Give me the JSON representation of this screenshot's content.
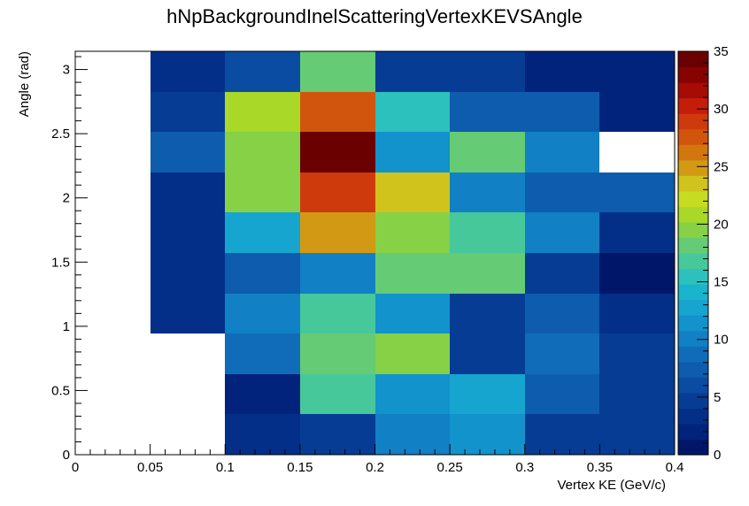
{
  "chart_data": {
    "type": "heatmap",
    "title": "hNpBackgroundInelScatteringVertexKEVSAngle",
    "xlabel": "Vertex KE (GeV/c)",
    "ylabel": "Angle (rad)",
    "xlim": [
      0,
      0.4
    ],
    "ylim": [
      0,
      3.14159
    ],
    "x_edges": [
      0,
      0.05,
      0.1,
      0.15,
      0.2,
      0.25,
      0.3,
      0.35,
      0.4
    ],
    "y_edges": [
      0,
      0.31416,
      0.62832,
      0.94248,
      1.25664,
      1.5708,
      1.88496,
      2.19911,
      2.51327,
      2.82743,
      3.14159
    ],
    "x_tick_labels": [
      "0",
      "0.05",
      "0.1",
      "0.15",
      "0.2",
      "0.25",
      "0.3",
      "0.35",
      "0.4"
    ],
    "y_tick_values": [
      0,
      0.5,
      1,
      1.5,
      2,
      2.5,
      3
    ],
    "y_tick_labels": [
      "0",
      "0.5",
      "1",
      "1.5",
      "2",
      "2.5",
      "3"
    ],
    "z_range": [
      0,
      35
    ],
    "colorbar_ticks": [
      0,
      5,
      10,
      15,
      20,
      25,
      30,
      35
    ],
    "colorbar_tick_labels": [
      "0",
      "5",
      "10",
      "15",
      "20",
      "25",
      "30",
      "35"
    ],
    "values": [
      [
        0,
        0,
        3,
        5,
        10,
        12,
        5,
        5
      ],
      [
        0,
        0,
        2,
        17,
        12,
        13,
        7,
        5
      ],
      [
        0,
        0,
        9,
        18,
        20,
        5,
        9,
        5
      ],
      [
        0,
        4,
        10,
        17,
        12,
        5,
        7,
        3
      ],
      [
        0,
        4,
        8,
        10,
        18,
        18,
        5,
        1
      ],
      [
        0,
        4,
        13,
        25,
        20,
        17,
        10,
        3
      ],
      [
        0,
        4,
        20,
        29,
        23,
        10,
        7,
        7
      ],
      [
        0,
        8,
        20,
        34,
        12,
        18,
        10,
        0
      ],
      [
        0,
        5,
        21,
        27,
        15,
        7,
        7,
        2
      ],
      [
        0,
        3,
        6,
        18,
        5,
        5,
        2,
        2
      ]
    ],
    "palette": [
      "#001769",
      "#01237c",
      "#032f88",
      "#063c94",
      "#0a4ca1",
      "#0e5cae",
      "#106cb9",
      "#1180c5",
      "#1293cc",
      "#16a5cf",
      "#1ab4cc",
      "#2cc1bc",
      "#47c89b",
      "#65cb74",
      "#86d146",
      "#a9d828",
      "#c6dc22",
      "#d0c31c",
      "#d29a14",
      "#d27610",
      "#d2550d",
      "#ce3a0c",
      "#c41e0b",
      "#a60b06",
      "#880202",
      "#6a0000"
    ]
  }
}
